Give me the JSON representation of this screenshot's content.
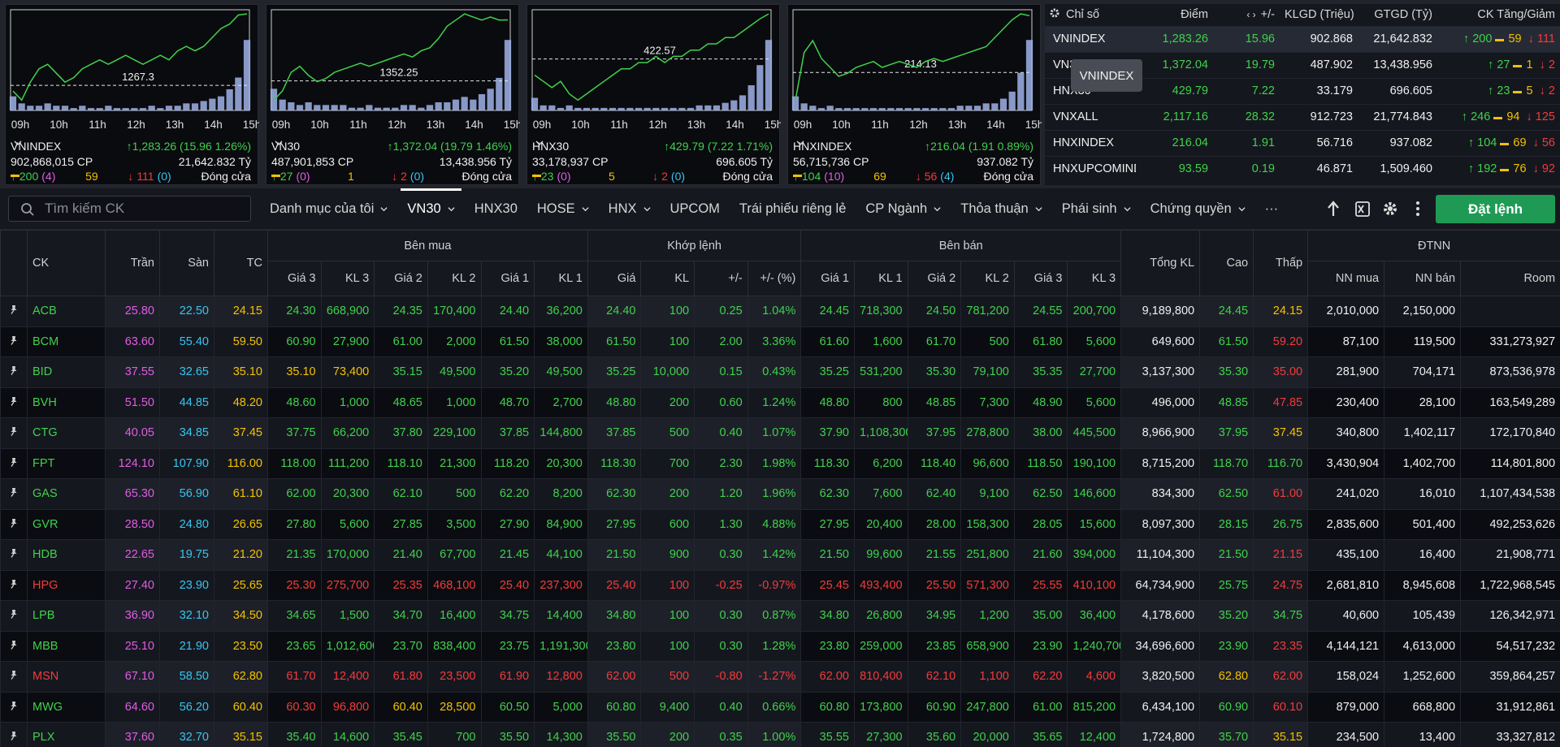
{
  "time_labels": [
    "09h",
    "10h",
    "11h",
    "12h",
    "13h",
    "14h",
    "15h"
  ],
  "mini_charts": [
    {
      "name": "VNINDEX",
      "change": "1,283.26 (15.96 1.26%)",
      "volume": "902,868,015 CP",
      "value": "21,642.832 Tỷ",
      "adv": "200",
      "adv_ceil": "(4)",
      "unchanged": "59",
      "decl": "111",
      "decl_floor": "(0)",
      "status": "Đóng cửa",
      "ref": 1267.3,
      "line": [
        1266,
        1264,
        1268,
        1271,
        1272,
        1270,
        1268,
        1269,
        1271,
        1272,
        1273,
        1272,
        1273,
        1274,
        1273,
        1272,
        1273,
        1274,
        1273,
        1275,
        1276,
        1275,
        1276,
        1278,
        1280,
        1281,
        1283,
        1283.26
      ],
      "volume_bars": [
        6,
        3,
        2,
        2,
        3,
        2,
        2,
        1,
        2,
        1,
        1,
        2,
        1,
        1,
        1,
        1,
        2,
        1,
        2,
        2,
        3,
        3,
        4,
        5,
        6,
        9,
        14,
        30
      ]
    },
    {
      "name": "VN30",
      "change": "1,372.04 (19.79 1.46%)",
      "volume": "487,901,853 CP",
      "value": "13,438.956 Tỷ",
      "adv": "27",
      "adv_ceil": "(0)",
      "unchanged": "1",
      "decl": "2",
      "decl_floor": "(0)",
      "status": "Đóng cửa",
      "ref": 1352.25,
      "line": [
        1346,
        1349,
        1355,
        1357,
        1354,
        1352,
        1353,
        1355,
        1356,
        1357,
        1358,
        1357,
        1358,
        1359,
        1360,
        1361,
        1360,
        1362,
        1363,
        1366,
        1370,
        1372,
        1374,
        1373,
        1372,
        1373,
        1372,
        1372.04
      ],
      "volume_bars": [
        8,
        4,
        3,
        2,
        3,
        2,
        2,
        2,
        2,
        1,
        1,
        2,
        1,
        1,
        1,
        2,
        2,
        1,
        2,
        3,
        3,
        4,
        5,
        4,
        6,
        8,
        12,
        26
      ]
    },
    {
      "name": "HNX30",
      "change": "429.79 (7.22 1.71%)",
      "volume": "33,178,937 CP",
      "value": "696.605 Tỷ",
      "adv": "23",
      "adv_ceil": "(0)",
      "unchanged": "5",
      "decl": "2",
      "decl_floor": "(0)",
      "status": "Đóng cửa",
      "ref": 422.57,
      "line": [
        420,
        419,
        418,
        419,
        417,
        416,
        417,
        418,
        419,
        420,
        421,
        421,
        422,
        422,
        423,
        422,
        423,
        423,
        424,
        424,
        425,
        425,
        426,
        426,
        427,
        428,
        429,
        429.79
      ],
      "volume_bars": [
        5,
        2,
        2,
        1,
        2,
        1,
        1,
        1,
        1,
        1,
        1,
        1,
        1,
        1,
        1,
        1,
        1,
        1,
        1,
        2,
        2,
        2,
        3,
        4,
        6,
        10,
        18,
        28
      ]
    },
    {
      "name": "HNXINDEX",
      "change": "216.04 (1.91 0.89%)",
      "volume": "56,715,736 CP",
      "value": "937.082 Tỷ",
      "adv": "104",
      "adv_ceil": "(10)",
      "unchanged": "69",
      "decl": "56",
      "decl_floor": "(4)",
      "status": "Đóng cửa",
      "ref": 214.13,
      "line": [
        213.2,
        214.8,
        215.2,
        214.6,
        214.3,
        214.0,
        214.1,
        214.3,
        214.4,
        214.5,
        214.3,
        214.4,
        214.5,
        214.4,
        214.3,
        214.5,
        214.6,
        214.5,
        214.6,
        214.7,
        214.8,
        214.9,
        215.0,
        215.3,
        215.6,
        215.9,
        216.1,
        216.04
      ],
      "volume_bars": [
        6,
        3,
        2,
        1,
        2,
        1,
        1,
        1,
        1,
        1,
        1,
        1,
        1,
        1,
        1,
        1,
        1,
        1,
        1,
        2,
        2,
        2,
        3,
        3,
        5,
        8,
        16,
        30
      ]
    }
  ],
  "index_table": {
    "headers": [
      "Chỉ số",
      "Điểm",
      "+/-",
      "KLGD (Triệu)",
      "GTGD (Tỷ)",
      "CK Tăng/Giảm"
    ],
    "rows": [
      [
        "VNINDEX",
        "1,283.26",
        "15.96",
        "902.868",
        "21,642.832",
        "200",
        "59",
        "111"
      ],
      [
        "VN30",
        "1,372.04",
        "19.79",
        "487.902",
        "13,438.956",
        "27",
        "1",
        "2"
      ],
      [
        "HNX30",
        "429.79",
        "7.22",
        "33.179",
        "696.605",
        "23",
        "5",
        "2"
      ],
      [
        "VNXALL",
        "2,117.16",
        "28.32",
        "912.723",
        "21,774.843",
        "246",
        "94",
        "125"
      ],
      [
        "HNXINDEX",
        "216.04",
        "1.91",
        "56.716",
        "937.082",
        "104",
        "69",
        "56"
      ],
      [
        "HNXUPCOMINDEX",
        "93.59",
        "0.19",
        "46.871",
        "1,509.460",
        "192",
        "76",
        "92"
      ]
    ]
  },
  "tooltip": "VNINDEX",
  "search_placeholder": "Tìm kiếm CK",
  "tabs": [
    {
      "label": "Danh mục của tôi",
      "dropdown": true
    },
    {
      "label": "VN30",
      "dropdown": true,
      "active": true
    },
    {
      "label": "HNX30",
      "dropdown": false
    },
    {
      "label": "HOSE",
      "dropdown": true
    },
    {
      "label": "HNX",
      "dropdown": true
    },
    {
      "label": "UPCOM",
      "dropdown": false
    },
    {
      "label": "Trái phiếu riêng lẻ",
      "dropdown": false
    },
    {
      "label": "CP Ngành",
      "dropdown": true
    },
    {
      "label": "Thỏa thuận",
      "dropdown": true
    },
    {
      "label": "Phái sinh",
      "dropdown": true
    },
    {
      "label": "Chứng quyền",
      "dropdown": true
    },
    {
      "label": "···",
      "dropdown": false
    }
  ],
  "order_button": "Đặt lệnh",
  "table": {
    "top": [
      "CK",
      "Trần",
      "Sàn",
      "TC",
      "Bên mua",
      "Khớp lệnh",
      "Bên bán",
      "Tổng KL",
      "Cao",
      "Thấp",
      "ĐTNN"
    ],
    "sub": [
      "Giá 3",
      "KL 3",
      "Giá 2",
      "KL 2",
      "Giá 1",
      "KL 1",
      "Giá",
      "KL",
      "+/-",
      "+/- (%)",
      "Giá 1",
      "KL 1",
      "Giá 2",
      "KL 2",
      "Giá 3",
      "KL 3",
      "NN mua",
      "NN bán",
      "Room"
    ],
    "rows": [
      [
        "ACB",
        "25.80",
        "22.50",
        "24.15",
        "24.30",
        "668,900",
        "24.35",
        "170,400",
        "24.40",
        "36,200",
        "24.40",
        "100",
        "0.25",
        "1.04%",
        "24.45",
        "718,300",
        "24.50",
        "781,200",
        "24.55",
        "200,700",
        "9,189,800",
        "24.45",
        "24.15",
        "2,010,000",
        "2,150,000",
        null
      ],
      [
        "BCM",
        "63.60",
        "55.40",
        "59.50",
        "60.90",
        "27,900",
        "61.00",
        "2,000",
        "61.50",
        "38,000",
        "61.50",
        "100",
        "2.00",
        "3.36%",
        "61.60",
        "1,600",
        "61.70",
        "500",
        "61.80",
        "5,600",
        "649,600",
        "61.50",
        "59.20",
        "87,100",
        "119,500",
        "331,273,927"
      ],
      [
        "BID",
        "37.55",
        "32.65",
        "35.10",
        "35.10",
        "73,400",
        "35.15",
        "49,500",
        "35.20",
        "49,500",
        "35.25",
        "10,000",
        "0.15",
        "0.43%",
        "35.25",
        "531,200",
        "35.30",
        "79,100",
        "35.35",
        "27,700",
        "3,137,300",
        "35.30",
        "35.00",
        "281,900",
        "704,171",
        "873,536,978"
      ],
      [
        "BVH",
        "51.50",
        "44.85",
        "48.20",
        "48.60",
        "1,000",
        "48.65",
        "1,000",
        "48.70",
        "2,700",
        "48.80",
        "200",
        "0.60",
        "1.24%",
        "48.80",
        "800",
        "48.85",
        "7,300",
        "48.90",
        "5,600",
        "496,000",
        "48.85",
        "47.85",
        "230,400",
        "28,100",
        "163,549,289"
      ],
      [
        "CTG",
        "40.05",
        "34.85",
        "37.45",
        "37.75",
        "66,200",
        "37.80",
        "229,100",
        "37.85",
        "144,800",
        "37.85",
        "500",
        "0.40",
        "1.07%",
        "37.90",
        "1,108,300",
        "37.95",
        "278,800",
        "38.00",
        "445,500",
        "8,966,900",
        "37.95",
        "37.45",
        "340,800",
        "1,402,117",
        "172,170,840"
      ],
      [
        "FPT",
        "124.10",
        "107.90",
        "116.00",
        "118.00",
        "111,200",
        "118.10",
        "21,300",
        "118.20",
        "20,300",
        "118.30",
        "700",
        "2.30",
        "1.98%",
        "118.30",
        "6,200",
        "118.40",
        "96,600",
        "118.50",
        "190,100",
        "8,715,200",
        "118.70",
        "116.70",
        "3,430,904",
        "1,402,700",
        "114,801,800"
      ],
      [
        "GAS",
        "65.30",
        "56.90",
        "61.10",
        "62.00",
        "20,300",
        "62.10",
        "500",
        "62.20",
        "8,200",
        "62.30",
        "200",
        "1.20",
        "1.96%",
        "62.30",
        "7,600",
        "62.40",
        "9,100",
        "62.50",
        "146,600",
        "834,300",
        "62.50",
        "61.00",
        "241,020",
        "16,010",
        "1,107,434,538"
      ],
      [
        "GVR",
        "28.50",
        "24.80",
        "26.65",
        "27.80",
        "5,600",
        "27.85",
        "3,500",
        "27.90",
        "84,900",
        "27.95",
        "600",
        "1.30",
        "4.88%",
        "27.95",
        "20,400",
        "28.00",
        "158,300",
        "28.05",
        "15,600",
        "8,097,300",
        "28.15",
        "26.75",
        "2,835,600",
        "501,400",
        "492,253,626"
      ],
      [
        "HDB",
        "22.65",
        "19.75",
        "21.20",
        "21.35",
        "170,000",
        "21.40",
        "67,700",
        "21.45",
        "44,100",
        "21.50",
        "900",
        "0.30",
        "1.42%",
        "21.50",
        "99,600",
        "21.55",
        "251,800",
        "21.60",
        "394,000",
        "11,104,300",
        "21.50",
        "21.15",
        "435,100",
        "16,400",
        "21,908,771"
      ],
      [
        "HPG",
        "27.40",
        "23.90",
        "25.65",
        "25.30",
        "275,700",
        "25.35",
        "468,100",
        "25.40",
        "237,300",
        "25.40",
        "100",
        "-0.25",
        "-0.97%",
        "25.45",
        "493,400",
        "25.50",
        "571,300",
        "25.55",
        "410,100",
        "64,734,900",
        "25.75",
        "24.75",
        "2,681,810",
        "8,945,608",
        "1,722,968,545"
      ],
      [
        "LPB",
        "36.90",
        "32.10",
        "34.50",
        "34.65",
        "1,500",
        "34.70",
        "16,400",
        "34.75",
        "14,400",
        "34.80",
        "100",
        "0.30",
        "0.87%",
        "34.80",
        "26,800",
        "34.95",
        "1,200",
        "35.00",
        "36,400",
        "4,178,600",
        "35.20",
        "34.75",
        "40,600",
        "105,439",
        "126,342,971"
      ],
      [
        "MBB",
        "25.10",
        "21.90",
        "23.50",
        "23.65",
        "1,012,600",
        "23.70",
        "838,400",
        "23.75",
        "1,191,300",
        "23.80",
        "100",
        "0.30",
        "1.28%",
        "23.80",
        "259,000",
        "23.85",
        "658,900",
        "23.90",
        "1,240,700",
        "34,696,600",
        "23.90",
        "23.35",
        "4,144,121",
        "4,613,000",
        "54,517,232"
      ],
      [
        "MSN",
        "67.10",
        "58.50",
        "62.80",
        "61.70",
        "12,400",
        "61.80",
        "23,500",
        "61.90",
        "12,800",
        "62.00",
        "500",
        "-0.80",
        "-1.27%",
        "62.00",
        "810,400",
        "62.10",
        "1,100",
        "62.20",
        "4,600",
        "3,820,500",
        "62.80",
        "62.00",
        "158,024",
        "1,252,600",
        "359,864,257"
      ],
      [
        "MWG",
        "64.60",
        "56.20",
        "60.40",
        "60.30",
        "96,800",
        "60.40",
        "28,500",
        "60.50",
        "5,000",
        "60.80",
        "9,400",
        "0.40",
        "0.66%",
        "60.80",
        "173,800",
        "60.90",
        "247,800",
        "61.00",
        "815,200",
        "6,434,100",
        "60.90",
        "60.10",
        "879,000",
        "668,800",
        "31,912,861"
      ],
      [
        "PLX",
        "37.60",
        "32.70",
        "35.15",
        "35.40",
        "14,600",
        "35.45",
        "700",
        "35.50",
        "14,300",
        "35.50",
        "200",
        "0.35",
        "1.00%",
        "35.55",
        "27,300",
        "35.60",
        "20,000",
        "35.65",
        "12,400",
        "1,724,800",
        "35.70",
        "35.15",
        "234,500",
        "13,400",
        "33,327,812"
      ]
    ]
  }
}
